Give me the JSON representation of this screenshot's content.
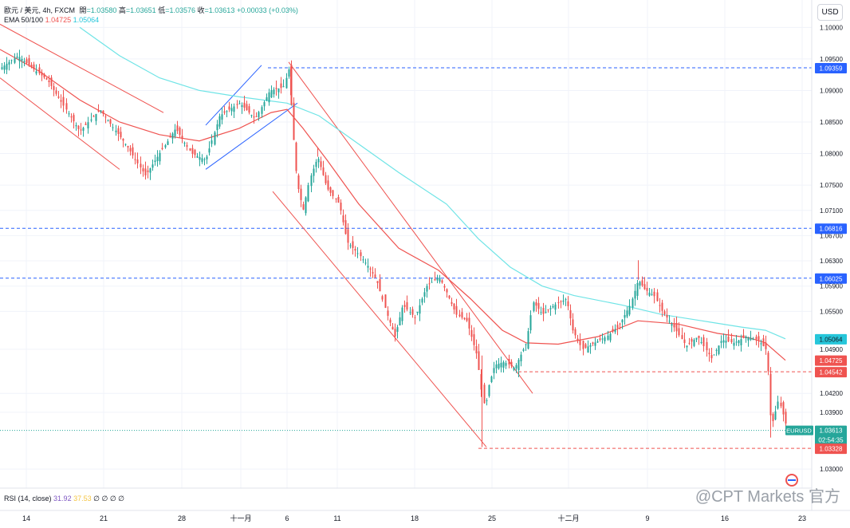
{
  "header": {
    "symbol": "歐元 / 美元, 4h, FXCM",
    "open_label": "開",
    "open": "=1.03580",
    "high_label": "高",
    "high": "=1.03651",
    "low_label": "低",
    "low": "=1.03576",
    "close_label": "收",
    "close": "=1.03613",
    "change": "+0.00033 (+0.03%)",
    "ema_label": "EMA 50/100",
    "ema50": "1.04725",
    "ema100": "1.05064"
  },
  "currency_button": "USD",
  "rsi": {
    "label": "RSI (14, close)",
    "v1": "31.92",
    "v2": "37.53",
    "rest": "∅ ∅ ∅ ∅"
  },
  "watermark": "@CPT Markets 官方",
  "colors": {
    "up": "#26a69a",
    "down": "#ef5350",
    "ema50": "#ef5350",
    "ema100": "#6fe4e6",
    "hline": "#2962ff",
    "channel_red": "#ef5350",
    "channel_blue": "#2962ff"
  },
  "chart_data": {
    "type": "candlestick",
    "symbol": "EURUSD",
    "timeframe": "4h",
    "y_range": [
      1.0285,
      1.1008
    ],
    "y_ticks": [
      "1.10000",
      "1.09500",
      "1.09000",
      "1.08500",
      "1.08000",
      "1.07500",
      "1.07100",
      "1.06700",
      "1.06300",
      "1.05900",
      "1.05500",
      "1.04900",
      "1.04200",
      "1.03900",
      "1.03000"
    ],
    "x_ticks": [
      "14",
      "21",
      "28",
      "十一月",
      "6",
      "11",
      "18",
      "25",
      "十二月",
      "9",
      "16",
      "23"
    ],
    "price_labels": [
      {
        "text": "1.09359",
        "value": 1.09359,
        "color": "#2962ff",
        "line": "dashed-blue"
      },
      {
        "text": "1.06816",
        "value": 1.06816,
        "color": "#2962ff",
        "line": "dashed-blue"
      },
      {
        "text": "1.06025",
        "value": 1.06025,
        "color": "#2962ff",
        "line": "dashed-blue"
      },
      {
        "text": "1.05064",
        "value": 1.05064,
        "color": "#26c6da",
        "line": "none"
      },
      {
        "text": "1.04725",
        "value": 1.04725,
        "color": "#ef5350",
        "line": "none"
      },
      {
        "text": "1.04542",
        "value": 1.04542,
        "color": "#ef5350",
        "line": "dashed-red"
      },
      {
        "text": "1.03613",
        "value": 1.03613,
        "color": "#26a69a",
        "line": "dotted-green",
        "tag": "EURUSD",
        "countdown": "02:54:35"
      },
      {
        "text": "1.03328",
        "value": 1.03328,
        "color": "#ef5350",
        "line": "dashed-red"
      }
    ],
    "close_path": [
      [
        0,
        1.0935
      ],
      [
        22,
        1.0955
      ],
      [
        60,
        1.0915
      ],
      [
        100,
        1.0835
      ],
      [
        125,
        1.087
      ],
      [
        160,
        1.081
      ],
      [
        182,
        1.0765
      ],
      [
        205,
        1.081
      ],
      [
        220,
        1.084
      ],
      [
        240,
        1.08
      ],
      [
        258,
        1.079
      ],
      [
        275,
        1.086
      ],
      [
        300,
        1.088
      ],
      [
        320,
        1.0855
      ],
      [
        338,
        1.09
      ],
      [
        355,
        1.0905
      ],
      [
        362,
        1.0935
      ],
      [
        366,
        1.085
      ],
      [
        372,
        1.0755
      ],
      [
        380,
        1.071
      ],
      [
        388,
        1.076
      ],
      [
        398,
        1.0795
      ],
      [
        410,
        1.0745
      ],
      [
        425,
        1.072
      ],
      [
        435,
        1.066
      ],
      [
        450,
        1.064
      ],
      [
        462,
        1.062
      ],
      [
        472,
        1.06
      ],
      [
        485,
        1.0545
      ],
      [
        495,
        1.051
      ],
      [
        505,
        1.056
      ],
      [
        520,
        1.054
      ],
      [
        535,
        1.059
      ],
      [
        550,
        1.0605
      ],
      [
        560,
        1.058
      ],
      [
        572,
        1.0545
      ],
      [
        585,
        1.0535
      ],
      [
        598,
        1.048
      ],
      [
        604,
        1.042
      ],
      [
        608,
        1.0395
      ],
      [
        612,
        1.043
      ],
      [
        620,
        1.0465
      ],
      [
        632,
        1.047
      ],
      [
        645,
        1.046
      ],
      [
        660,
        1.05
      ],
      [
        668,
        1.0565
      ],
      [
        680,
        1.0545
      ],
      [
        695,
        1.056
      ],
      [
        710,
        1.057
      ],
      [
        718,
        1.052
      ],
      [
        730,
        1.049
      ],
      [
        745,
        1.05
      ],
      [
        760,
        1.051
      ],
      [
        775,
        1.0525
      ],
      [
        790,
        1.056
      ],
      [
        800,
        1.06
      ],
      [
        808,
        1.0585
      ],
      [
        820,
        1.0575
      ],
      [
        830,
        1.055
      ],
      [
        845,
        1.0525
      ],
      [
        860,
        1.0495
      ],
      [
        875,
        1.051
      ],
      [
        892,
        1.0475
      ],
      [
        905,
        1.0505
      ],
      [
        920,
        1.05
      ],
      [
        935,
        1.051
      ],
      [
        950,
        1.0505
      ],
      [
        960,
        1.049
      ],
      [
        963,
        1.0455
      ],
      [
        967,
        1.0365
      ],
      [
        971,
        1.0385
      ],
      [
        976,
        1.041
      ],
      [
        982,
        1.0385
      ],
      [
        987,
        1.03613
      ]
    ],
    "spikes": [
      {
        "x": 604,
        "low": 1.0335,
        "high": 1.048
      },
      {
        "x": 800,
        "high": 1.0631
      },
      {
        "x": 966,
        "low": 1.035
      },
      {
        "x": 364,
        "high": 1.0938
      },
      {
        "x": 398,
        "high": 1.081
      }
    ],
    "ema50_path": [
      [
        0,
        1.0965
      ],
      [
        50,
        1.093
      ],
      [
        100,
        1.0885
      ],
      [
        150,
        1.085
      ],
      [
        200,
        1.083
      ],
      [
        250,
        1.082
      ],
      [
        300,
        1.084
      ],
      [
        340,
        1.0865
      ],
      [
        360,
        1.087
      ],
      [
        380,
        1.084
      ],
      [
        410,
        1.079
      ],
      [
        450,
        1.072
      ],
      [
        500,
        1.065
      ],
      [
        550,
        1.0615
      ],
      [
        590,
        1.057
      ],
      [
        630,
        1.052
      ],
      [
        660,
        1.05
      ],
      [
        700,
        1.0498
      ],
      [
        750,
        1.051
      ],
      [
        800,
        1.0535
      ],
      [
        850,
        1.053
      ],
      [
        900,
        1.0515
      ],
      [
        940,
        1.0508
      ],
      [
        960,
        1.05
      ],
      [
        985,
        1.04725
      ]
    ],
    "ema100_path": [
      [
        100,
        1.1
      ],
      [
        150,
        1.0955
      ],
      [
        200,
        1.092
      ],
      [
        250,
        1.09
      ],
      [
        300,
        1.089
      ],
      [
        360,
        1.088
      ],
      [
        400,
        1.086
      ],
      [
        450,
        1.0815
      ],
      [
        500,
        1.077
      ],
      [
        560,
        1.072
      ],
      [
        600,
        1.0665
      ],
      [
        640,
        1.062
      ],
      [
        680,
        1.059
      ],
      [
        720,
        1.0575
      ],
      [
        780,
        1.056
      ],
      [
        830,
        1.0545
      ],
      [
        880,
        1.0535
      ],
      [
        930,
        1.0525
      ],
      [
        960,
        1.052
      ],
      [
        985,
        1.05064
      ]
    ],
    "trend_lines": [
      {
        "color": "red",
        "from": [
          0,
          1.092
        ],
        "to": [
          150,
          1.0775
        ]
      },
      {
        "color": "red",
        "from": [
          0,
          1.1005
        ],
        "to": [
          205,
          1.0865
        ]
      },
      {
        "color": "blue",
        "from": [
          258,
          1.0845
        ],
        "to": [
          328,
          1.094
        ]
      },
      {
        "color": "blue",
        "from": [
          258,
          1.0775
        ],
        "to": [
          373,
          1.088
        ]
      },
      {
        "color": "red",
        "from": [
          362,
          1.0945
        ],
        "to": [
          668,
          1.042
        ]
      },
      {
        "color": "red",
        "from": [
          342,
          1.074
        ],
        "to": [
          610,
          1.0335
        ]
      }
    ]
  }
}
